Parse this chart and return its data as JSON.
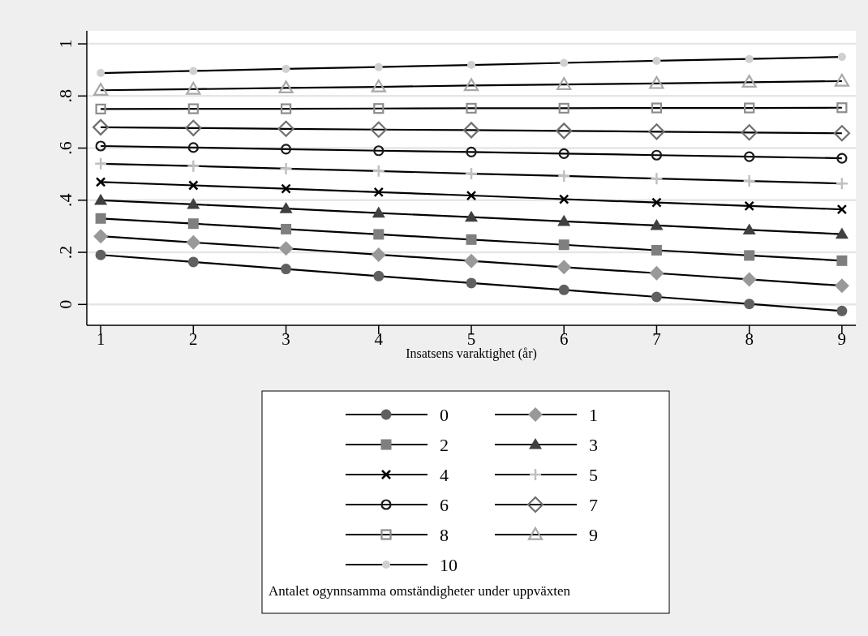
{
  "chart_data": {
    "type": "line",
    "xlabel": "Insatsens varaktighet (år)",
    "legend_title": "Antalet ogynnsamma omständigheter under uppväxten",
    "legend": "bottom",
    "grid": "y",
    "line_style": "solid",
    "x": [
      1,
      2,
      3,
      4,
      5,
      6,
      7,
      8,
      9
    ],
    "xlim": [
      0.85,
      9.15
    ],
    "xticks": [
      1,
      2,
      3,
      4,
      5,
      6,
      7,
      8,
      9
    ],
    "ylim": [
      -0.08,
      1.05
    ],
    "yticks": [
      {
        "value": 0,
        "label": "0"
      },
      {
        "value": 0.2,
        "label": ".2"
      },
      {
        "value": 0.4,
        "label": ".4"
      },
      {
        "value": 0.6,
        "label": ".6"
      },
      {
        "value": 0.8,
        "label": ".8"
      },
      {
        "value": 1,
        "label": "1"
      }
    ],
    "series": [
      {
        "name": "0",
        "color": "#606060",
        "marker": "circle",
        "values": [
          0.19,
          0.163,
          0.136,
          0.109,
          0.082,
          0.056,
          0.029,
          0.002,
          -0.025
        ]
      },
      {
        "name": "1",
        "color": "#999999",
        "marker": "diamond",
        "values": [
          0.262,
          0.238,
          0.215,
          0.191,
          0.167,
          0.143,
          0.12,
          0.096,
          0.072
        ]
      },
      {
        "name": "2",
        "color": "#7f7f7f",
        "marker": "square",
        "values": [
          0.33,
          0.31,
          0.289,
          0.269,
          0.249,
          0.229,
          0.208,
          0.188,
          0.168
        ]
      },
      {
        "name": "3",
        "color": "#404040",
        "marker": "triangle",
        "values": [
          0.4,
          0.384,
          0.368,
          0.351,
          0.335,
          0.319,
          0.303,
          0.286,
          0.27
        ]
      },
      {
        "name": "4",
        "color": "#000000",
        "marker": "cross",
        "values": [
          0.47,
          0.457,
          0.444,
          0.431,
          0.418,
          0.404,
          0.391,
          0.378,
          0.365
        ]
      },
      {
        "name": "5",
        "color": "#c0c0c0",
        "marker": "cross",
        "values": [
          0.54,
          0.531,
          0.521,
          0.512,
          0.502,
          0.493,
          0.483,
          0.474,
          0.464
        ]
      },
      {
        "name": "6",
        "color": "#1a1a1a",
        "marker": "circle",
        "values": [
          0.608,
          0.602,
          0.596,
          0.59,
          0.585,
          0.579,
          0.573,
          0.567,
          0.561
        ]
      },
      {
        "name": "7",
        "color": "#707070",
        "marker": "diamond",
        "values": [
          0.68,
          0.677,
          0.674,
          0.671,
          0.669,
          0.666,
          0.663,
          0.66,
          0.657
        ]
      },
      {
        "name": "8",
        "color": "#8c8c8c",
        "marker": "square",
        "values": [
          0.75,
          0.751,
          0.751,
          0.752,
          0.753,
          0.753,
          0.754,
          0.754,
          0.755
        ]
      },
      {
        "name": "9",
        "color": "#a8a8a8",
        "marker": "triangle",
        "values": [
          0.822,
          0.826,
          0.831,
          0.835,
          0.84,
          0.844,
          0.848,
          0.853,
          0.857
        ]
      },
      {
        "name": "10",
        "color": "#d0d0d0",
        "marker": "circle",
        "values": [
          0.888,
          0.896,
          0.904,
          0.911,
          0.919,
          0.927,
          0.935,
          0.942,
          0.95
        ]
      }
    ]
  }
}
